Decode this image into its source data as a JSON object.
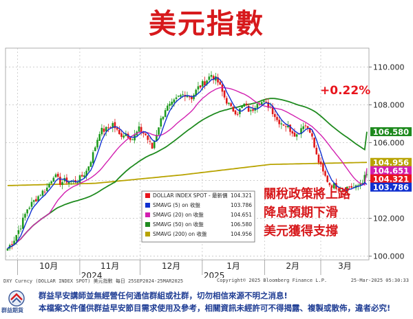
{
  "title": "美元指數",
  "change_label": "+0.22%",
  "annotation_lines": [
    "關稅政策將上路",
    "降息預期下滑",
    "美元獲得支撐"
  ],
  "legend": {
    "rows": [
      {
        "label": "DOLLAR INDEX SPOT - 最新價",
        "value": "104.321",
        "color": "#e8141c"
      },
      {
        "label": "SMAVG (5)  on 收盤",
        "value": "103.786",
        "color": "#1030d0"
      },
      {
        "label": "SMAVG (20)  on 收盤",
        "value": "104.651",
        "color": "#d21fb0"
      },
      {
        "label": "SMAVG (50)  on 收盤",
        "value": "106.580",
        "color": "#1e8a1e"
      },
      {
        "label": "SMAVG (200)  on 收盤",
        "value": "104.956",
        "color": "#b8a300"
      }
    ]
  },
  "right_badges": [
    {
      "value": "106.580",
      "color": "#1e8a1e"
    },
    {
      "value": "104.956",
      "color": "#b8a300"
    },
    {
      "value": "104.651",
      "color": "#d21fb0"
    },
    {
      "value": "104.321",
      "color": "#e8141c"
    },
    {
      "value": "103.786",
      "color": "#1030d0"
    }
  ],
  "meta": {
    "left": "DXY Curncy (DOLLAR INDEX SPOT) 美元指數  每日 25SEP2024-25MAR2025",
    "mid": "Copyright© 2025 Bloomberg Finance L.P.",
    "right": "25-Mar-2025 05:30:33"
  },
  "footer": {
    "logo": "群益期貨",
    "line1": "群益早安講師並無經營任何通信群組或社群，切勿相信來源不明之消息!",
    "line2": "本檔案文件僅供群益早安節目需求使用及參考，相關資訊未經許可不得揭露、複製或散佈，違者必究!"
  },
  "chart_data": {
    "type": "candlestick",
    "ylim": [
      99.8,
      111.0
    ],
    "y_ticks": [
      "100.000",
      "102.000",
      "104.000",
      "106.000",
      "108.000",
      "110.000"
    ],
    "x_ticks": [
      {
        "label": "10月",
        "date": "2024-10-01"
      },
      {
        "label": "11月",
        "date": "2024-11-01"
      },
      {
        "label": "12月",
        "date": "2024-12-01"
      },
      {
        "label": "1月",
        "date": "2025-01-01"
      },
      {
        "label": "2月",
        "date": "2025-02-01"
      },
      {
        "label": "3月",
        "date": "2025-03-01"
      }
    ],
    "year_labels": [
      {
        "label": "2024",
        "date": "2024-11-01"
      },
      {
        "label": "2025",
        "date": "2025-01-01"
      }
    ],
    "date_range": [
      "2024-09-25",
      "2025-03-25"
    ],
    "close_anchors": [
      [
        0,
        100.4
      ],
      [
        3,
        100.9
      ],
      [
        6,
        101.6
      ],
      [
        9,
        102.5
      ],
      [
        12,
        102.9
      ],
      [
        15,
        103.3
      ],
      [
        18,
        103.6
      ],
      [
        21,
        104.3
      ],
      [
        24,
        103.9
      ],
      [
        27,
        104.0
      ],
      [
        30,
        103.9
      ],
      [
        33,
        104.1
      ],
      [
        36,
        104.5
      ],
      [
        39,
        105.4
      ],
      [
        42,
        106.6
      ],
      [
        45,
        106.7
      ],
      [
        48,
        107.0
      ],
      [
        51,
        106.4
      ],
      [
        54,
        106.5
      ],
      [
        57,
        106.2
      ],
      [
        60,
        106.7
      ],
      [
        63,
        106.4
      ],
      [
        66,
        105.7
      ],
      [
        69,
        106.9
      ],
      [
        72,
        107.8
      ],
      [
        75,
        108.0
      ],
      [
        78,
        108.4
      ],
      [
        81,
        108.6
      ],
      [
        84,
        108.4
      ],
      [
        87,
        108.9
      ],
      [
        90,
        109.2
      ],
      [
        93,
        109.6
      ],
      [
        96,
        109.2
      ],
      [
        99,
        108.4
      ],
      [
        102,
        107.8
      ],
      [
        105,
        107.6
      ],
      [
        108,
        108.0
      ],
      [
        111,
        107.6
      ],
      [
        114,
        108.2
      ],
      [
        117,
        108.1
      ],
      [
        120,
        107.9
      ],
      [
        123,
        107.2
      ],
      [
        126,
        107.0
      ],
      [
        129,
        106.7
      ],
      [
        132,
        106.4
      ],
      [
        135,
        107.0
      ],
      [
        138,
        106.7
      ],
      [
        141,
        105.3
      ],
      [
        144,
        104.4
      ],
      [
        147,
        103.8
      ],
      [
        150,
        103.7
      ],
      [
        153,
        103.5
      ],
      [
        156,
        103.7
      ],
      [
        159,
        103.6
      ],
      [
        162,
        104.0
      ],
      [
        164,
        104.3
      ]
    ],
    "series": [
      {
        "name": "DOLLAR INDEX SPOT",
        "kind": "candles",
        "last": 104.321
      },
      {
        "name": "SMAVG (5)",
        "period": 5,
        "last": 103.786,
        "color": "#1030d0"
      },
      {
        "name": "SMAVG (20)",
        "period": 20,
        "last": 104.651,
        "color": "#d21fb0"
      },
      {
        "name": "SMAVG (50)",
        "period": 50,
        "last": 106.58,
        "color": "#1e8a1e"
      },
      {
        "name": "SMAVG (200)",
        "last": 104.956,
        "color": "#b8a300",
        "anchors": [
          [
            0,
            103.73
          ],
          [
            40,
            103.85
          ],
          [
            80,
            104.3
          ],
          [
            120,
            104.85
          ],
          [
            164,
            104.956
          ]
        ]
      }
    ]
  }
}
